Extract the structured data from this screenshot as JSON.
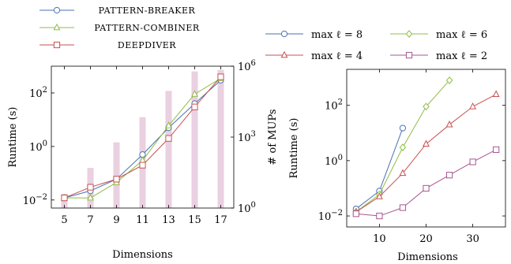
{
  "chart_data": [
    {
      "type": "line",
      "xlabel": "Dimensions",
      "ylabel": "Runtime (s)",
      "y2label": "# of MUPs",
      "yscale": "log",
      "y2scale": "log",
      "x": [
        5,
        7,
        9,
        11,
        13,
        15,
        17
      ],
      "xticks": [
        "5",
        "7",
        "9",
        "11",
        "13",
        "15",
        "17"
      ],
      "xlim": [
        4,
        18
      ],
      "ylim": [
        0.005,
        1000
      ],
      "yticks": [
        {
          "value": 0.01,
          "base": "10",
          "exp": "−2"
        },
        {
          "value": 1,
          "base": "10",
          "exp": "0"
        },
        {
          "value": 100,
          "base": "10",
          "exp": "2"
        }
      ],
      "y2lim": [
        1,
        1000000
      ],
      "y2ticks": [
        {
          "value": 1,
          "base": "10",
          "exp": "0"
        },
        {
          "value": 1000,
          "base": "10",
          "exp": "3"
        },
        {
          "value": 1000000,
          "base": "10",
          "exp": "6"
        }
      ],
      "legend_position": "top",
      "grid": false,
      "series": [
        {
          "name": "PATTERN-BREAKER",
          "color": "#4a72b0",
          "marker": "circle",
          "values": [
            0.012,
            0.022,
            0.06,
            0.5,
            5,
            40,
            300
          ]
        },
        {
          "name": "PATTERN-COMBINER",
          "color": "#8fbc45",
          "marker": "triangle",
          "values": [
            0.012,
            0.012,
            0.045,
            0.3,
            6,
            90,
            350
          ]
        },
        {
          "name": "DEEPDIVER",
          "color": "#c8504f",
          "marker": "square",
          "values": [
            0.012,
            0.03,
            0.06,
            0.2,
            2,
            30,
            400
          ]
        }
      ],
      "bars": {
        "name": "# of MUPs",
        "color": "#ead0e0",
        "values": [
          4,
          50,
          600,
          7000,
          90000,
          600000,
          700000
        ]
      }
    },
    {
      "type": "line",
      "xlabel": "Dimensions",
      "ylabel": "Runtime (s)",
      "yscale": "log",
      "xlim": [
        3,
        37
      ],
      "xticks": [
        10,
        20,
        30
      ],
      "ylim": [
        0.004,
        2000
      ],
      "yticks": [
        {
          "value": 0.01,
          "base": "10",
          "exp": "−2"
        },
        {
          "value": 1,
          "base": "10",
          "exp": "0"
        },
        {
          "value": 100,
          "base": "10",
          "exp": "2"
        }
      ],
      "legend_position": "top",
      "grid": false,
      "series": [
        {
          "name": "max ℓ = 8",
          "color": "#4a72b0",
          "marker": "circle",
          "x": [
            5,
            10,
            15
          ],
          "values": [
            0.018,
            0.08,
            15
          ]
        },
        {
          "name": "max ℓ = 6",
          "color": "#8fbc45",
          "marker": "diamond",
          "x": [
            5,
            10,
            15,
            20,
            25
          ],
          "values": [
            0.014,
            0.06,
            3,
            90,
            800
          ]
        },
        {
          "name": "max ℓ = 4",
          "color": "#c8504f",
          "marker": "triangle",
          "x": [
            5,
            10,
            15,
            20,
            25,
            30,
            35
          ],
          "values": [
            0.014,
            0.05,
            0.35,
            4,
            20,
            90,
            250
          ]
        },
        {
          "name": "max ℓ = 2",
          "color": "#a85590",
          "marker": "square",
          "x": [
            5,
            10,
            15,
            20,
            25,
            30,
            35
          ],
          "values": [
            0.012,
            0.01,
            0.02,
            0.1,
            0.3,
            0.9,
            2.5
          ]
        }
      ]
    }
  ]
}
